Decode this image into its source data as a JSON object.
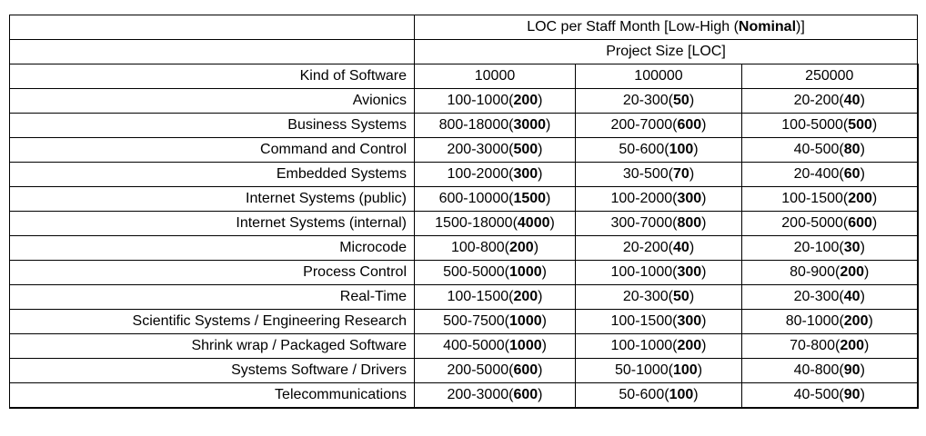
{
  "table": {
    "title_parts": [
      "LOC per Staff Month [Low-High (",
      "Nominal",
      ")]"
    ],
    "subtitle": "Project Size [LOC]",
    "corner_header": "Kind of Software",
    "size_headers": [
      "10000",
      "100000",
      "250000"
    ],
    "rows": [
      {
        "name": "Avionics",
        "c1": [
          "100-1000(",
          "200",
          ")"
        ],
        "c2": [
          "20-300(",
          "50",
          ")"
        ],
        "c3": [
          "20-200(",
          "40",
          ")"
        ]
      },
      {
        "name": "Business Systems",
        "c1": [
          "800-18000(",
          "3000",
          ")"
        ],
        "c2": [
          "200-7000(",
          "600",
          ")"
        ],
        "c3": [
          "100-5000(",
          "500",
          ")"
        ]
      },
      {
        "name": "Command and Control",
        "c1": [
          "200-3000(",
          "500",
          ")"
        ],
        "c2": [
          "50-600(",
          "100",
          ")"
        ],
        "c3": [
          "40-500(",
          "80",
          ")"
        ]
      },
      {
        "name": "Embedded Systems",
        "c1": [
          "100-2000(",
          "300",
          ")"
        ],
        "c2": [
          "30-500(",
          "70",
          ")"
        ],
        "c3": [
          "20-400(",
          "60",
          ")"
        ]
      },
      {
        "name": "Internet Systems (public)",
        "c1": [
          "600-10000(",
          "1500",
          ")"
        ],
        "c2": [
          "100-2000(",
          "300",
          ")"
        ],
        "c3": [
          "100-1500(",
          "200",
          ")"
        ]
      },
      {
        "name": "Internet Systems (internal)",
        "c1": [
          "1500-18000(",
          "4000",
          ")"
        ],
        "c2": [
          "300-7000(",
          "800",
          ")"
        ],
        "c3": [
          "200-5000(",
          "600",
          ")"
        ]
      },
      {
        "name": "Microcode",
        "c1": [
          "100-800(",
          "200",
          ")"
        ],
        "c2": [
          "20-200(",
          "40",
          ")"
        ],
        "c3": [
          "20-100(",
          "30",
          ")"
        ]
      },
      {
        "name": "Process Control",
        "c1": [
          "500-5000(",
          "1000",
          ")"
        ],
        "c2": [
          "100-1000(",
          "300",
          ")"
        ],
        "c3": [
          "80-900(",
          "200",
          ")"
        ]
      },
      {
        "name": "Real-Time",
        "c1": [
          "100-1500(",
          "200",
          ")"
        ],
        "c2": [
          "20-300(",
          "50",
          ")"
        ],
        "c3": [
          "20-300(",
          "40",
          ")"
        ]
      },
      {
        "name": "Scientific Systems / Engineering Research",
        "c1": [
          "500-7500(",
          "1000",
          ")"
        ],
        "c2": [
          "100-1500(",
          "300",
          ")"
        ],
        "c3": [
          "80-1000(",
          "200",
          ")"
        ]
      },
      {
        "name": "Shrink wrap / Packaged Software",
        "c1": [
          "400-5000(",
          "1000",
          ")"
        ],
        "c2": [
          "100-1000(",
          "200",
          ")"
        ],
        "c3": [
          "70-800(",
          "200",
          ")"
        ]
      },
      {
        "name": "Systems Software / Drivers",
        "c1": [
          "200-5000(",
          "600",
          ")"
        ],
        "c2": [
          "50-1000(",
          "100",
          ")"
        ],
        "c3": [
          "40-800(",
          "90",
          ")"
        ]
      },
      {
        "name": "Telecommunications",
        "c1": [
          "200-3000(",
          "600",
          ")"
        ],
        "c2": [
          "50-600(",
          "100",
          ")"
        ],
        "c3": [
          "40-500(",
          "90",
          ")"
        ]
      }
    ]
  }
}
